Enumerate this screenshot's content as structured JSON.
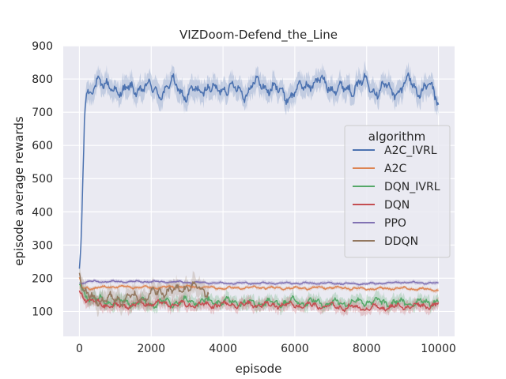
{
  "chart_data": {
    "type": "line",
    "title": "VIZDoom-Defend_the_Line",
    "xlabel": "episode",
    "ylabel": "episode average rewards",
    "xlim": [
      -450,
      10450
    ],
    "ylim": [
      25,
      900
    ],
    "xticks": [
      0,
      2000,
      4000,
      6000,
      8000,
      10000
    ],
    "yticks": [
      100,
      200,
      300,
      400,
      500,
      600,
      700,
      800,
      900
    ],
    "grid": true,
    "legend": {
      "title": "algorithm",
      "placement": "center-right"
    },
    "series": [
      {
        "name": "A2C_IVRL",
        "color": "#4c72b0",
        "x_max": 10000,
        "noise": 22,
        "band": 35,
        "points": [
          [
            0,
            220
          ],
          [
            50,
            300
          ],
          [
            100,
            500
          ],
          [
            150,
            700
          ],
          [
            200,
            755
          ],
          [
            300,
            750
          ],
          [
            400,
            790
          ],
          [
            500,
            805
          ],
          [
            700,
            770
          ],
          [
            1000,
            775
          ],
          [
            1200,
            760
          ],
          [
            1500,
            770
          ],
          [
            1800,
            775
          ],
          [
            2000,
            770
          ],
          [
            2400,
            760
          ],
          [
            2600,
            790
          ],
          [
            2800,
            775
          ],
          [
            3000,
            740
          ],
          [
            3200,
            765
          ],
          [
            3500,
            775
          ],
          [
            3800,
            760
          ],
          [
            4000,
            780
          ],
          [
            4300,
            770
          ],
          [
            4600,
            760
          ],
          [
            4900,
            785
          ],
          [
            5200,
            780
          ],
          [
            5500,
            765
          ],
          [
            5800,
            750
          ],
          [
            6100,
            765
          ],
          [
            6400,
            790
          ],
          [
            6700,
            790
          ],
          [
            7000,
            780
          ],
          [
            7300,
            765
          ],
          [
            7700,
            780
          ],
          [
            8000,
            790
          ],
          [
            8300,
            765
          ],
          [
            8600,
            775
          ],
          [
            8900,
            760
          ],
          [
            9200,
            800
          ],
          [
            9500,
            760
          ],
          [
            9800,
            775
          ],
          [
            10000,
            740
          ]
        ]
      },
      {
        "name": "A2C",
        "color": "#dd8452",
        "x_max": 10000,
        "noise": 4,
        "band": 6,
        "points": [
          [
            0,
            200
          ],
          [
            80,
            170
          ],
          [
            300,
            170
          ],
          [
            1000,
            175
          ],
          [
            2000,
            172
          ],
          [
            3000,
            175
          ],
          [
            4000,
            170
          ],
          [
            5000,
            172
          ],
          [
            6000,
            170
          ],
          [
            7000,
            172
          ],
          [
            8000,
            168
          ],
          [
            9000,
            170
          ],
          [
            10000,
            165
          ]
        ]
      },
      {
        "name": "DQN_IVRL",
        "color": "#55a868",
        "x_max": 10000,
        "noise": 13,
        "band": 20,
        "points": [
          [
            0,
            180
          ],
          [
            150,
            150
          ],
          [
            500,
            135
          ],
          [
            1000,
            130
          ],
          [
            2000,
            125
          ],
          [
            3000,
            130
          ],
          [
            4000,
            130
          ],
          [
            5000,
            125
          ],
          [
            6000,
            130
          ],
          [
            7000,
            125
          ],
          [
            8000,
            130
          ],
          [
            9000,
            125
          ],
          [
            10000,
            130
          ]
        ]
      },
      {
        "name": "DQN",
        "color": "#c44e52",
        "x_max": 10000,
        "noise": 10,
        "band": 18,
        "points": [
          [
            0,
            160
          ],
          [
            150,
            140
          ],
          [
            500,
            125
          ],
          [
            1000,
            115
          ],
          [
            2000,
            125
          ],
          [
            3000,
            120
          ],
          [
            4000,
            120
          ],
          [
            5000,
            120
          ],
          [
            6000,
            120
          ],
          [
            7000,
            115
          ],
          [
            8000,
            110
          ],
          [
            9000,
            115
          ],
          [
            10000,
            120
          ]
        ]
      },
      {
        "name": "PPO",
        "color": "#8172b3",
        "x_max": 10000,
        "noise": 3,
        "band": 6,
        "points": [
          [
            0,
            185
          ],
          [
            300,
            190
          ],
          [
            1000,
            190
          ],
          [
            2000,
            190
          ],
          [
            3000,
            188
          ],
          [
            4000,
            185
          ],
          [
            5000,
            185
          ],
          [
            6000,
            185
          ],
          [
            7000,
            185
          ],
          [
            8000,
            183
          ],
          [
            9000,
            188
          ],
          [
            10000,
            185
          ]
        ]
      },
      {
        "name": "DDQN",
        "color": "#937860",
        "x_max": 3600,
        "noise": 18,
        "band": 30,
        "points": [
          [
            0,
            230
          ],
          [
            100,
            160
          ],
          [
            300,
            140
          ],
          [
            800,
            135
          ],
          [
            1500,
            140
          ],
          [
            2000,
            150
          ],
          [
            2400,
            165
          ],
          [
            2700,
            160
          ],
          [
            3000,
            180
          ],
          [
            3300,
            170
          ],
          [
            3600,
            160
          ]
        ]
      }
    ]
  }
}
